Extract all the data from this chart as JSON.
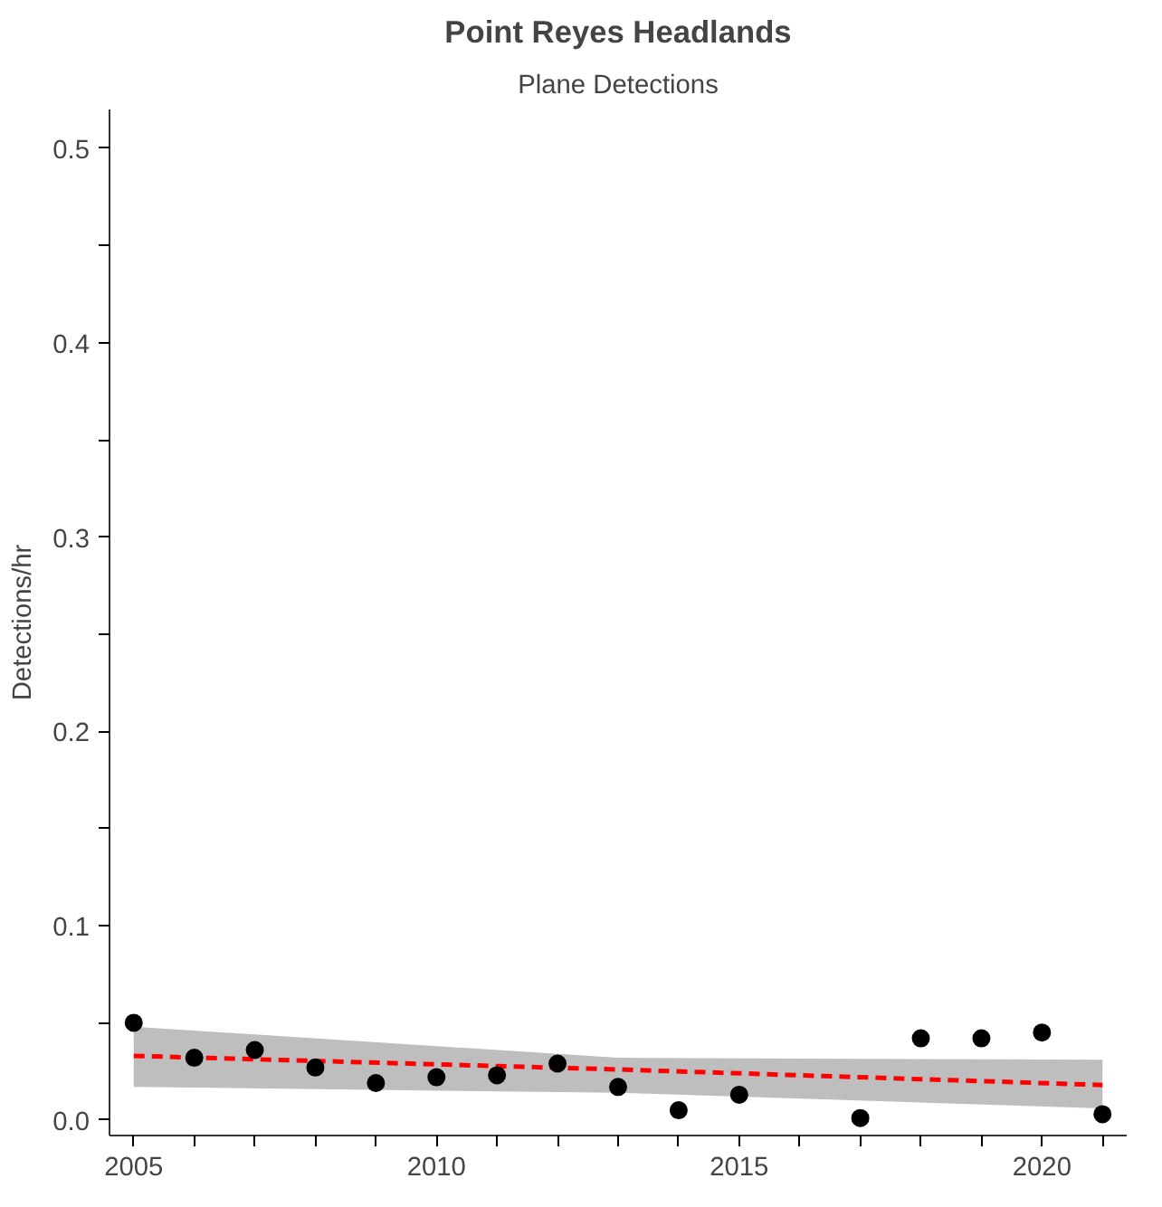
{
  "chart_data": {
    "type": "scatter",
    "title": "Point Reyes Headlands",
    "subtitle": "Plane Detections",
    "ylabel": "Detections/hr",
    "xlim": [
      2004.6,
      2021.4
    ],
    "ylim": [
      -0.008,
      0.52
    ],
    "xticks": [
      {
        "value": 2005,
        "label": "2005"
      },
      {
        "value": 2006,
        "label": null
      },
      {
        "value": 2007,
        "label": null
      },
      {
        "value": 2008,
        "label": null
      },
      {
        "value": 2009,
        "label": null
      },
      {
        "value": 2010,
        "label": "2010"
      },
      {
        "value": 2011,
        "label": null
      },
      {
        "value": 2012,
        "label": null
      },
      {
        "value": 2013,
        "label": null
      },
      {
        "value": 2014,
        "label": null
      },
      {
        "value": 2015,
        "label": "2015"
      },
      {
        "value": 2016,
        "label": null
      },
      {
        "value": 2017,
        "label": null
      },
      {
        "value": 2018,
        "label": null
      },
      {
        "value": 2019,
        "label": null
      },
      {
        "value": 2020,
        "label": "2020"
      },
      {
        "value": 2021,
        "label": null
      }
    ],
    "yticks": [
      {
        "value": 0,
        "label": "0.0"
      },
      {
        "value": 0.05,
        "label": null
      },
      {
        "value": 0.1,
        "label": "0.1"
      },
      {
        "value": 0.15,
        "label": null
      },
      {
        "value": 0.2,
        "label": "0.2"
      },
      {
        "value": 0.25,
        "label": null
      },
      {
        "value": 0.3,
        "label": "0.3"
      },
      {
        "value": 0.35,
        "label": null
      },
      {
        "value": 0.4,
        "label": "0.4"
      },
      {
        "value": 0.45,
        "label": null
      },
      {
        "value": 0.5,
        "label": "0.5"
      }
    ],
    "grid": false,
    "series": [
      {
        "type": "line",
        "color": "#ff0000",
        "line_style": "dashed",
        "marker": "none",
        "x": [
          2005,
          2013,
          2021
        ],
        "values": [
          0.033,
          0.026,
          0.018
        ],
        "lower": [
          0.017,
          0.014,
          0.006
        ],
        "upper": [
          0.048,
          0.032,
          0.031
        ]
      },
      {
        "color": "#000000",
        "marker": "circle",
        "x": [
          2005,
          2006,
          2007,
          2008,
          2009,
          2010,
          2011,
          2012,
          2013,
          2014,
          2015,
          2017,
          2018,
          2019,
          2020,
          2021
        ],
        "values": [
          0.05,
          0.032,
          0.036,
          0.027,
          0.019,
          0.022,
          0.023,
          0.029,
          0.017,
          0.005,
          0.013,
          0.001,
          0.042,
          0.042,
          0.045,
          0.003
        ]
      }
    ]
  }
}
